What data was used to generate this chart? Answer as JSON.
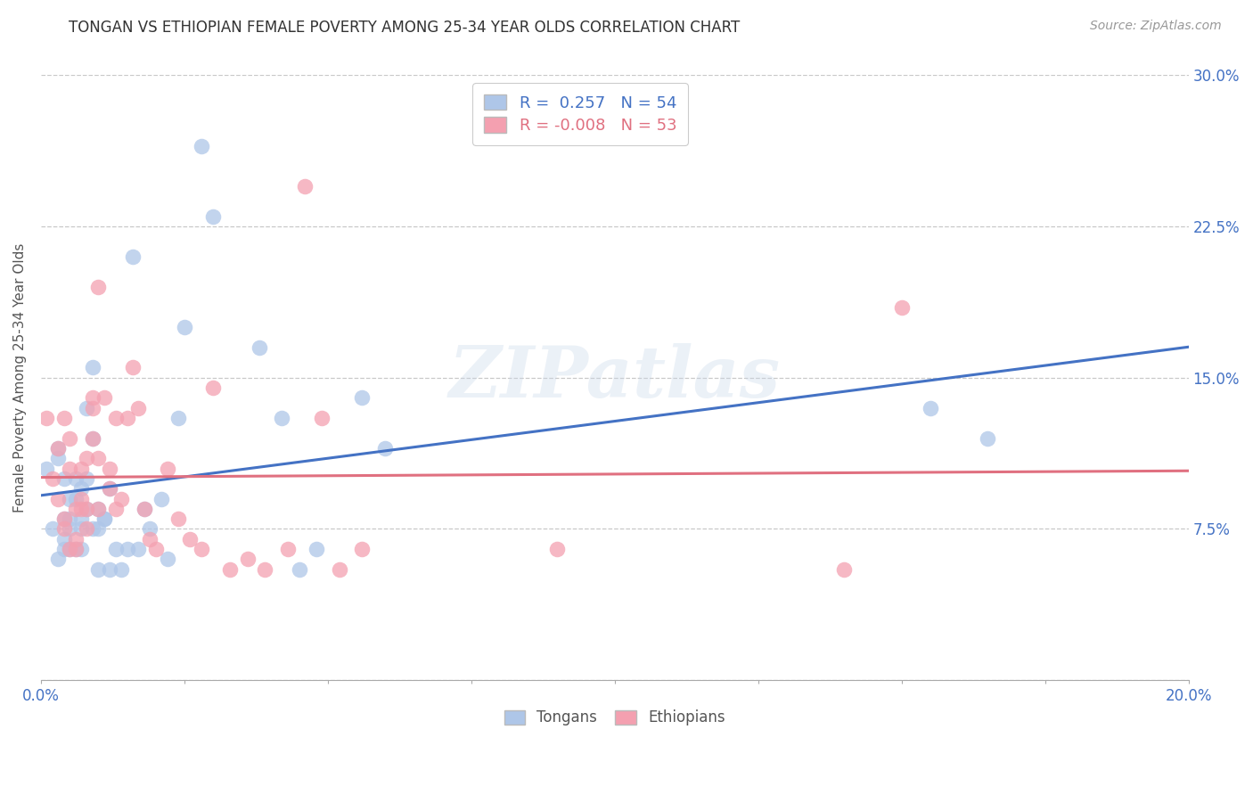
{
  "title": "TONGAN VS ETHIOPIAN FEMALE POVERTY AMONG 25-34 YEAR OLDS CORRELATION CHART",
  "source": "Source: ZipAtlas.com",
  "ylabel": "Female Poverty Among 25-34 Year Olds",
  "xlim": [
    0.0,
    0.2
  ],
  "ylim": [
    0.0,
    0.3
  ],
  "xticks": [
    0.0,
    0.025,
    0.05,
    0.075,
    0.1,
    0.125,
    0.15,
    0.175,
    0.2
  ],
  "yticks": [
    0.0,
    0.075,
    0.15,
    0.225,
    0.3
  ],
  "bg_color": "#ffffff",
  "grid_color": "#c8c8c8",
  "tongan_color": "#aec6e8",
  "ethiopian_color": "#f4a0b0",
  "tongan_line_color": "#4472c4",
  "ethiopian_line_color": "#e07080",
  "legend_R_tongan": "R =  0.257   N = 54",
  "legend_R_ethiopian": "R = -0.008   N = 53",
  "watermark": "ZIPatlas",
  "tongan_x": [
    0.001,
    0.002,
    0.003,
    0.003,
    0.003,
    0.004,
    0.004,
    0.004,
    0.004,
    0.005,
    0.005,
    0.005,
    0.005,
    0.006,
    0.006,
    0.006,
    0.007,
    0.007,
    0.007,
    0.007,
    0.008,
    0.008,
    0.008,
    0.009,
    0.009,
    0.009,
    0.01,
    0.01,
    0.01,
    0.011,
    0.011,
    0.012,
    0.012,
    0.013,
    0.014,
    0.015,
    0.016,
    0.017,
    0.018,
    0.019,
    0.021,
    0.022,
    0.024,
    0.025,
    0.028,
    0.03,
    0.038,
    0.042,
    0.045,
    0.048,
    0.056,
    0.06,
    0.155,
    0.165
  ],
  "tongan_y": [
    0.105,
    0.075,
    0.11,
    0.115,
    0.06,
    0.065,
    0.08,
    0.1,
    0.07,
    0.08,
    0.065,
    0.075,
    0.09,
    0.065,
    0.09,
    0.1,
    0.08,
    0.095,
    0.065,
    0.075,
    0.135,
    0.085,
    0.1,
    0.12,
    0.075,
    0.155,
    0.075,
    0.085,
    0.055,
    0.08,
    0.08,
    0.095,
    0.055,
    0.065,
    0.055,
    0.065,
    0.21,
    0.065,
    0.085,
    0.075,
    0.09,
    0.06,
    0.13,
    0.175,
    0.265,
    0.23,
    0.165,
    0.13,
    0.055,
    0.065,
    0.14,
    0.115,
    0.135,
    0.12
  ],
  "ethiopian_x": [
    0.001,
    0.002,
    0.003,
    0.003,
    0.004,
    0.004,
    0.004,
    0.005,
    0.005,
    0.005,
    0.006,
    0.006,
    0.006,
    0.007,
    0.007,
    0.007,
    0.008,
    0.008,
    0.008,
    0.009,
    0.009,
    0.009,
    0.01,
    0.01,
    0.01,
    0.011,
    0.012,
    0.012,
    0.013,
    0.013,
    0.014,
    0.015,
    0.016,
    0.017,
    0.018,
    0.019,
    0.02,
    0.022,
    0.024,
    0.026,
    0.028,
    0.03,
    0.033,
    0.036,
    0.039,
    0.043,
    0.046,
    0.049,
    0.052,
    0.056,
    0.09,
    0.14,
    0.15
  ],
  "ethiopian_y": [
    0.13,
    0.1,
    0.115,
    0.09,
    0.08,
    0.13,
    0.075,
    0.12,
    0.065,
    0.105,
    0.07,
    0.085,
    0.065,
    0.09,
    0.085,
    0.105,
    0.085,
    0.11,
    0.075,
    0.14,
    0.12,
    0.135,
    0.195,
    0.085,
    0.11,
    0.14,
    0.095,
    0.105,
    0.13,
    0.085,
    0.09,
    0.13,
    0.155,
    0.135,
    0.085,
    0.07,
    0.065,
    0.105,
    0.08,
    0.07,
    0.065,
    0.145,
    0.055,
    0.06,
    0.055,
    0.065,
    0.245,
    0.13,
    0.055,
    0.065,
    0.065,
    0.055,
    0.185
  ]
}
